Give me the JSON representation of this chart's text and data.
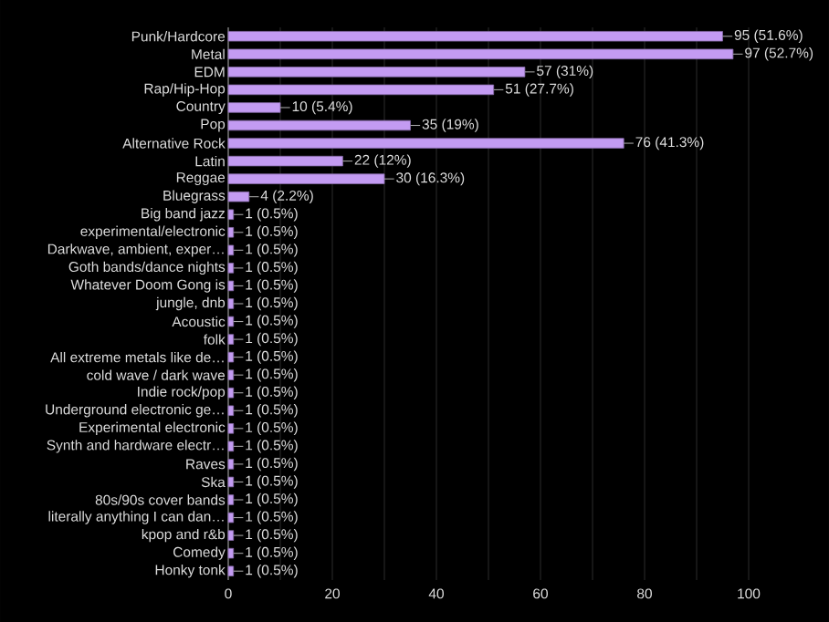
{
  "chart_data": {
    "type": "bar",
    "orientation": "horizontal",
    "color": "#c39bf2",
    "grid": "x",
    "categories": [
      "Punk/Hardcore",
      "Metal",
      "EDM",
      "Rap/Hip-Hop",
      "Country",
      "Pop",
      "Alternative Rock",
      "Latin",
      "Reggae",
      "Bluegrass",
      "Big band jazz",
      "experimental/electronic",
      "Darkwave, ambient, exper…",
      "Goth bands/dance nights",
      "Whatever Doom Gong is",
      "jungle, dnb",
      "Acoustic",
      "folk",
      "All extreme metals like de…",
      "cold wave / dark wave",
      "Indie rock/pop",
      "Underground electronic ge…",
      "Experimental electronic",
      "Synth and hardware electr…",
      "Raves",
      "Ska",
      "80s/90s cover bands",
      "literally anything I can dan…",
      "kpop and r&b",
      "Comedy",
      "Honky tonk"
    ],
    "values": [
      95,
      97,
      57,
      51,
      10,
      35,
      76,
      22,
      30,
      4,
      1,
      1,
      1,
      1,
      1,
      1,
      1,
      1,
      1,
      1,
      1,
      1,
      1,
      1,
      1,
      1,
      1,
      1,
      1,
      1,
      1
    ],
    "value_labels": [
      "95 (51.6%)",
      "97 (52.7%)",
      "57 (31%)",
      "51 (27.7%)",
      "10 (5.4%)",
      "35 (19%)",
      "76 (41.3%)",
      "22 (12%)",
      "30 (16.3%)",
      "4 (2.2%)",
      "1 (0.5%)",
      "1 (0.5%)",
      "1 (0.5%)",
      "1 (0.5%)",
      "1 (0.5%)",
      "1 (0.5%)",
      "1 (0.5%)",
      "1 (0.5%)",
      "1 (0.5%)",
      "1 (0.5%)",
      "1 (0.5%)",
      "1 (0.5%)",
      "1 (0.5%)",
      "1 (0.5%)",
      "1 (0.5%)",
      "1 (0.5%)",
      "1 (0.5%)",
      "1 (0.5%)",
      "1 (0.5%)",
      "1 (0.5%)",
      "1 (0.5%)"
    ],
    "xlim": [
      0,
      100
    ],
    "xticks": [
      0,
      {
        "value": 10,
        "label": null
      },
      20,
      {
        "value": 30,
        "label": null
      },
      40,
      {
        "value": 50,
        "label": null
      },
      60,
      {
        "value": 70,
        "label": null
      },
      80,
      {
        "value": 90,
        "label": null
      },
      100
    ]
  }
}
